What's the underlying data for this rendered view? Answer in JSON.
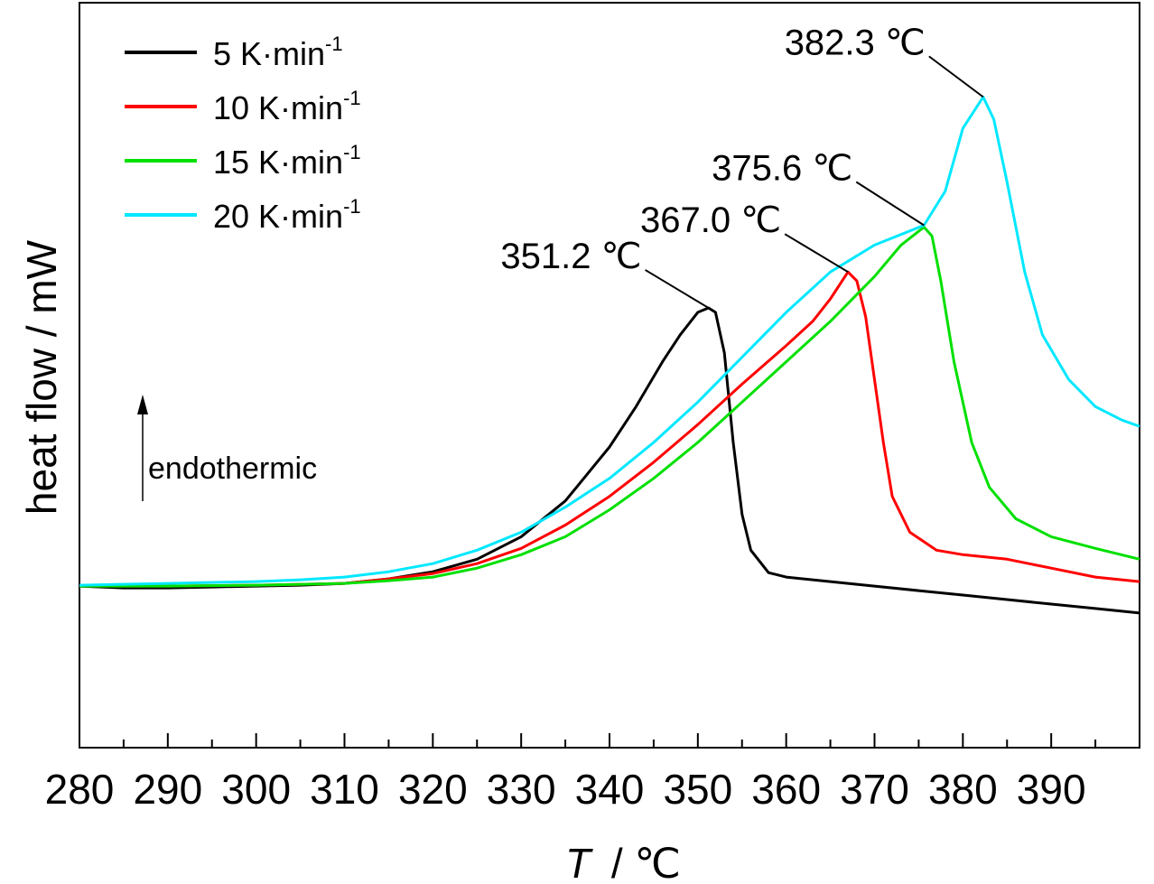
{
  "chart_data": {
    "type": "line",
    "xlabel": {
      "symbol": "T",
      "unit": "/ ℃"
    },
    "ylabel": "heat flow / mW",
    "xlim": [
      280,
      400
    ],
    "ylim": [
      -1.8,
      6.5
    ],
    "x_ticks": [
      280,
      290,
      300,
      310,
      320,
      330,
      340,
      350,
      360,
      370,
      380,
      390
    ],
    "legend_position": "top-left",
    "indicator": {
      "label": "endothermic",
      "direction": "up"
    },
    "series": [
      {
        "name": "5 K·min",
        "sup": "-1",
        "color": "#000000",
        "points": [
          [
            280,
            0
          ],
          [
            285,
            -0.02
          ],
          [
            290,
            -0.02
          ],
          [
            295,
            -0.01
          ],
          [
            300,
            0
          ],
          [
            305,
            0.01
          ],
          [
            310,
            0.03
          ],
          [
            315,
            0.08
          ],
          [
            320,
            0.16
          ],
          [
            325,
            0.3
          ],
          [
            330,
            0.55
          ],
          [
            335,
            0.95
          ],
          [
            340,
            1.55
          ],
          [
            343,
            2.0
          ],
          [
            346,
            2.5
          ],
          [
            348,
            2.8
          ],
          [
            350,
            3.05
          ],
          [
            351.2,
            3.1
          ],
          [
            352,
            3.05
          ],
          [
            353,
            2.6
          ],
          [
            354,
            1.6
          ],
          [
            355,
            0.8
          ],
          [
            356,
            0.4
          ],
          [
            358,
            0.15
          ],
          [
            360,
            0.1
          ],
          [
            365,
            0.05
          ],
          [
            370,
            0
          ],
          [
            375,
            -0.05
          ],
          [
            380,
            -0.1
          ],
          [
            385,
            -0.15
          ],
          [
            390,
            -0.2
          ],
          [
            395,
            -0.25
          ],
          [
            400,
            -0.3
          ]
        ]
      },
      {
        "name": "10 K·min",
        "sup": "-1",
        "color": "#ff0000",
        "points": [
          [
            280,
            0
          ],
          [
            290,
            0
          ],
          [
            300,
            0.01
          ],
          [
            310,
            0.03
          ],
          [
            315,
            0.08
          ],
          [
            320,
            0.14
          ],
          [
            325,
            0.25
          ],
          [
            330,
            0.42
          ],
          [
            335,
            0.68
          ],
          [
            340,
            1.0
          ],
          [
            345,
            1.38
          ],
          [
            350,
            1.8
          ],
          [
            355,
            2.25
          ],
          [
            360,
            2.68
          ],
          [
            363,
            2.95
          ],
          [
            365,
            3.2
          ],
          [
            367,
            3.5
          ],
          [
            368,
            3.4
          ],
          [
            369,
            3.0
          ],
          [
            370,
            2.3
          ],
          [
            371,
            1.6
          ],
          [
            372,
            1.0
          ],
          [
            374,
            0.6
          ],
          [
            377,
            0.4
          ],
          [
            380,
            0.35
          ],
          [
            385,
            0.3
          ],
          [
            390,
            0.2
          ],
          [
            395,
            0.1
          ],
          [
            400,
            0.05
          ]
        ]
      },
      {
        "name": "15 K·min",
        "sup": "-1",
        "color": "#00e000",
        "points": [
          [
            280,
            0
          ],
          [
            290,
            0
          ],
          [
            300,
            0.01
          ],
          [
            310,
            0.03
          ],
          [
            315,
            0.06
          ],
          [
            320,
            0.1
          ],
          [
            325,
            0.2
          ],
          [
            330,
            0.35
          ],
          [
            335,
            0.55
          ],
          [
            340,
            0.85
          ],
          [
            345,
            1.2
          ],
          [
            350,
            1.6
          ],
          [
            355,
            2.05
          ],
          [
            360,
            2.5
          ],
          [
            365,
            2.95
          ],
          [
            370,
            3.45
          ],
          [
            373,
            3.8
          ],
          [
            375.6,
            4.0
          ],
          [
            376.5,
            3.9
          ],
          [
            377.5,
            3.4
          ],
          [
            379,
            2.5
          ],
          [
            381,
            1.6
          ],
          [
            383,
            1.1
          ],
          [
            386,
            0.75
          ],
          [
            390,
            0.55
          ],
          [
            395,
            0.42
          ],
          [
            400,
            0.3
          ]
        ]
      },
      {
        "name": "20 K·min",
        "sup": "-1",
        "color": "#00e8ff",
        "points": [
          [
            280,
            0.01
          ],
          [
            290,
            0.03
          ],
          [
            300,
            0.05
          ],
          [
            305,
            0.07
          ],
          [
            310,
            0.1
          ],
          [
            315,
            0.16
          ],
          [
            320,
            0.25
          ],
          [
            325,
            0.4
          ],
          [
            330,
            0.6
          ],
          [
            335,
            0.88
          ],
          [
            340,
            1.2
          ],
          [
            345,
            1.6
          ],
          [
            350,
            2.05
          ],
          [
            355,
            2.55
          ],
          [
            360,
            3.05
          ],
          [
            365,
            3.5
          ],
          [
            370,
            3.8
          ],
          [
            375.6,
            4.02
          ],
          [
            378,
            4.4
          ],
          [
            380,
            5.1
          ],
          [
            382.3,
            5.45
          ],
          [
            383.5,
            5.2
          ],
          [
            385,
            4.5
          ],
          [
            387,
            3.5
          ],
          [
            389,
            2.8
          ],
          [
            392,
            2.3
          ],
          [
            395,
            2.0
          ],
          [
            398,
            1.85
          ],
          [
            400,
            1.78
          ]
        ]
      }
    ],
    "annotations": [
      {
        "text": "351.2 ℃",
        "x": 351.2,
        "y": 3.1
      },
      {
        "text": "367.0 ℃",
        "x": 367.0,
        "y": 3.5
      },
      {
        "text": "375.6 ℃",
        "x": 375.6,
        "y": 4.02
      },
      {
        "text": "382.3 ℃",
        "x": 382.3,
        "y": 5.45
      }
    ]
  }
}
